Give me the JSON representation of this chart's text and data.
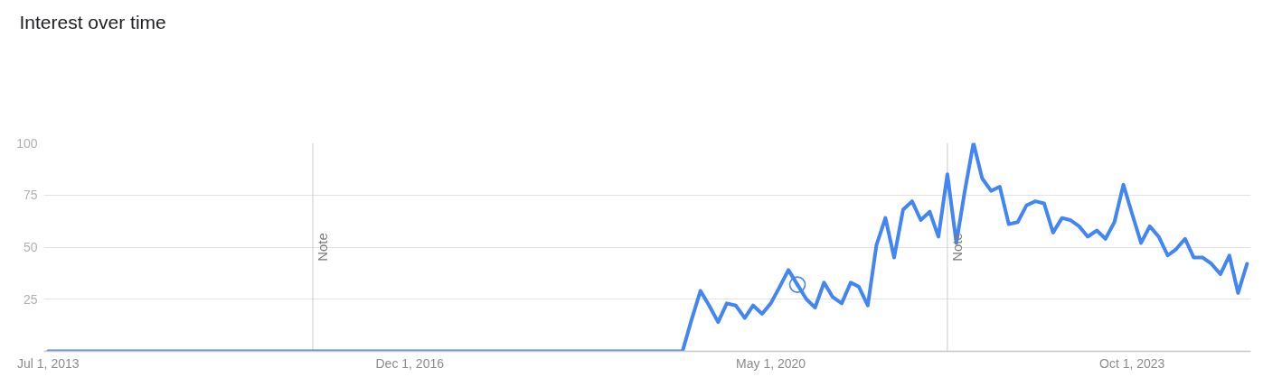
{
  "chart_data": {
    "type": "line",
    "title": "Interest over time",
    "x": [
      "2013-07",
      "2013-08",
      "2013-09",
      "2013-10",
      "2013-11",
      "2013-12",
      "2014-01",
      "2014-02",
      "2014-03",
      "2014-04",
      "2014-05",
      "2014-06",
      "2014-07",
      "2014-08",
      "2014-09",
      "2014-10",
      "2014-11",
      "2014-12",
      "2015-01",
      "2015-02",
      "2015-03",
      "2015-04",
      "2015-05",
      "2015-06",
      "2015-07",
      "2015-08",
      "2015-09",
      "2015-10",
      "2015-11",
      "2015-12",
      "2016-01",
      "2016-02",
      "2016-03",
      "2016-04",
      "2016-05",
      "2016-06",
      "2016-07",
      "2016-08",
      "2016-09",
      "2016-10",
      "2016-11",
      "2016-12",
      "2017-01",
      "2017-02",
      "2017-03",
      "2017-04",
      "2017-05",
      "2017-06",
      "2017-07",
      "2017-08",
      "2017-09",
      "2017-10",
      "2017-11",
      "2017-12",
      "2018-01",
      "2018-02",
      "2018-03",
      "2018-04",
      "2018-05",
      "2018-06",
      "2018-07",
      "2018-08",
      "2018-09",
      "2018-10",
      "2018-11",
      "2018-12",
      "2019-01",
      "2019-02",
      "2019-03",
      "2019-04",
      "2019-05",
      "2019-06",
      "2019-07",
      "2019-08",
      "2019-09",
      "2019-10",
      "2019-11",
      "2019-12",
      "2020-01",
      "2020-02",
      "2020-03",
      "2020-04",
      "2020-05",
      "2020-06",
      "2020-07",
      "2020-08",
      "2020-09",
      "2020-10",
      "2020-11",
      "2020-12",
      "2021-01",
      "2021-02",
      "2021-03",
      "2021-04",
      "2021-05",
      "2021-06",
      "2021-07",
      "2021-08",
      "2021-09",
      "2021-10",
      "2021-11",
      "2021-12",
      "2022-01",
      "2022-02",
      "2022-03",
      "2022-04",
      "2022-05",
      "2022-06",
      "2022-07",
      "2022-08",
      "2022-09",
      "2022-10",
      "2022-11",
      "2022-12",
      "2023-01",
      "2023-02",
      "2023-03",
      "2023-04",
      "2023-05",
      "2023-06",
      "2023-07",
      "2023-08",
      "2023-09",
      "2023-10",
      "2023-11",
      "2023-12",
      "2024-01",
      "2024-02",
      "2024-03",
      "2024-04",
      "2024-05",
      "2024-06",
      "2024-07",
      "2024-08",
      "2024-09",
      "2024-10",
      "2024-11"
    ],
    "series": [
      {
        "color": "#4285f4",
        "values": [
          0,
          0,
          0,
          0,
          0,
          0,
          0,
          0,
          0,
          0,
          0,
          0,
          0,
          0,
          0,
          0,
          0,
          0,
          0,
          0,
          0,
          0,
          0,
          0,
          0,
          0,
          0,
          0,
          0,
          0,
          0,
          0,
          0,
          0,
          0,
          0,
          0,
          0,
          0,
          0,
          0,
          0,
          0,
          0,
          0,
          0,
          0,
          0,
          0,
          0,
          0,
          0,
          0,
          0,
          0,
          0,
          0,
          0,
          0,
          0,
          0,
          0,
          0,
          0,
          0,
          0,
          0,
          0,
          0,
          0,
          0,
          0,
          0,
          15,
          29,
          22,
          14,
          23,
          22,
          16,
          22,
          18,
          23,
          31,
          39,
          32,
          25,
          21,
          33,
          26,
          23,
          33,
          31,
          22,
          51,
          64,
          45,
          68,
          72,
          63,
          67,
          55,
          85,
          52,
          76,
          100,
          83,
          77,
          79,
          61,
          62,
          70,
          72,
          71,
          57,
          64,
          63,
          60,
          55,
          58,
          54,
          62,
          80,
          66,
          52,
          60,
          55,
          46,
          49,
          54,
          45,
          45,
          42,
          37,
          46,
          28,
          42
        ]
      },
      {
        "type": "scatter",
        "color": "#4285f4",
        "marker": "circle",
        "x": [
          "2020-08"
        ],
        "values": [
          32
        ]
      }
    ],
    "xlim": [
      "2013-06-16",
      "2024-11-14"
    ],
    "ylim": [
      0,
      100
    ],
    "xticks": [
      {
        "value": "2013-07-01",
        "label": "Jul 1, 2013"
      },
      {
        "value": "2016-12-01",
        "label": "Dec 1, 2016"
      },
      {
        "value": "2020-05-01",
        "label": "May 1, 2020"
      },
      {
        "value": "2023-10-01",
        "label": "Oct 1, 2023"
      }
    ],
    "yticks": [
      25,
      50,
      75,
      100
    ],
    "grid": "y",
    "line_style": "solid",
    "ref_lines": [
      {
        "axis": "x",
        "value": "2016-01",
        "label": "Note",
        "color": "#cccccc"
      },
      {
        "axis": "x",
        "value": "2022-01",
        "label": "Note",
        "color": "#cccccc"
      }
    ]
  }
}
